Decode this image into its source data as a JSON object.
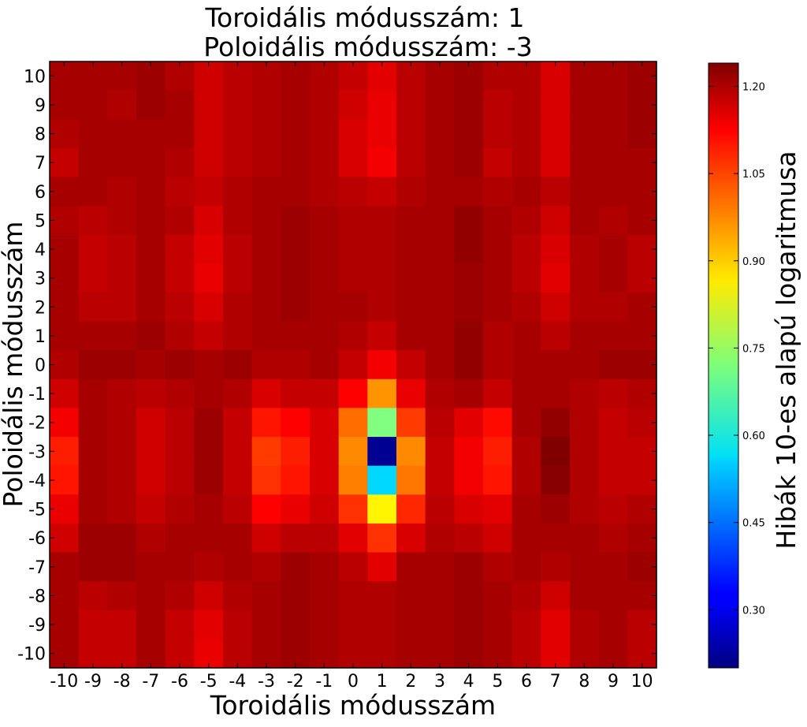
{
  "chart_data": {
    "type": "heatmap",
    "title": [
      "Toroidális módusszám: 1",
      "Poloidális módusszám: -3"
    ],
    "xlabel": "Toroidális módusszám",
    "ylabel": "Poloidális módusszám",
    "colorbar_label": "Hibák 10-es alapú logaritmusa",
    "x": [
      -10,
      -9,
      -8,
      -7,
      -6,
      -5,
      -4,
      -3,
      -2,
      -1,
      0,
      1,
      2,
      3,
      4,
      5,
      6,
      7,
      8,
      9,
      10
    ],
    "y": [
      10,
      9,
      8,
      7,
      6,
      5,
      4,
      3,
      2,
      1,
      0,
      -1,
      -2,
      -3,
      -4,
      -5,
      -6,
      -7,
      -8,
      -9,
      -10
    ],
    "x_tick_labels": [
      "-10",
      "-9",
      "-8",
      "-7",
      "-6",
      "-5",
      "-4",
      "-3",
      "-2",
      "-1",
      "0",
      "1",
      "2",
      "3",
      "4",
      "5",
      "6",
      "7",
      "8",
      "9",
      "10"
    ],
    "y_tick_labels": [
      "10",
      "9",
      "8",
      "7",
      "6",
      "5",
      "4",
      "3",
      "2",
      "1",
      "0",
      "-1",
      "-2",
      "-3",
      "-4",
      "-5",
      "-6",
      "-7",
      "-8",
      "-9",
      "-10"
    ],
    "colorbar_range": [
      0.2,
      1.24
    ],
    "colorbar_ticks": [
      0.3,
      0.45,
      0.6,
      0.75,
      0.9,
      1.05,
      1.2
    ],
    "colorbar_tick_labels": [
      "0.30",
      "0.45",
      "0.60",
      "0.75",
      "0.90",
      "1.05",
      "1.20"
    ],
    "colormap": "jet",
    "values": [
      [
        1.2,
        1.2,
        1.2,
        1.21,
        1.19,
        1.16,
        1.18,
        1.19,
        1.2,
        1.19,
        1.17,
        1.14,
        1.18,
        1.2,
        1.21,
        1.19,
        1.19,
        1.15,
        1.2,
        1.2,
        1.21
      ],
      [
        1.2,
        1.2,
        1.19,
        1.21,
        1.2,
        1.16,
        1.18,
        1.19,
        1.2,
        1.19,
        1.16,
        1.13,
        1.18,
        1.2,
        1.21,
        1.18,
        1.19,
        1.15,
        1.2,
        1.2,
        1.21
      ],
      [
        1.19,
        1.2,
        1.2,
        1.2,
        1.2,
        1.16,
        1.18,
        1.19,
        1.2,
        1.19,
        1.15,
        1.13,
        1.18,
        1.2,
        1.21,
        1.18,
        1.19,
        1.15,
        1.2,
        1.2,
        1.21
      ],
      [
        1.17,
        1.2,
        1.2,
        1.2,
        1.19,
        1.16,
        1.18,
        1.19,
        1.2,
        1.19,
        1.15,
        1.12,
        1.18,
        1.2,
        1.21,
        1.17,
        1.19,
        1.15,
        1.2,
        1.2,
        1.2
      ],
      [
        1.2,
        1.2,
        1.19,
        1.2,
        1.18,
        1.17,
        1.19,
        1.2,
        1.2,
        1.19,
        1.18,
        1.17,
        1.19,
        1.2,
        1.2,
        1.19,
        1.2,
        1.18,
        1.2,
        1.2,
        1.2
      ],
      [
        1.19,
        1.18,
        1.19,
        1.2,
        1.19,
        1.15,
        1.19,
        1.2,
        1.21,
        1.2,
        1.19,
        1.19,
        1.2,
        1.2,
        1.22,
        1.2,
        1.19,
        1.16,
        1.2,
        1.19,
        1.2
      ],
      [
        1.2,
        1.17,
        1.18,
        1.2,
        1.17,
        1.14,
        1.18,
        1.2,
        1.21,
        1.2,
        1.19,
        1.19,
        1.2,
        1.2,
        1.22,
        1.2,
        1.18,
        1.15,
        1.19,
        1.2,
        1.18
      ],
      [
        1.2,
        1.17,
        1.18,
        1.2,
        1.17,
        1.13,
        1.18,
        1.2,
        1.21,
        1.2,
        1.19,
        1.19,
        1.2,
        1.2,
        1.21,
        1.2,
        1.18,
        1.14,
        1.19,
        1.2,
        1.18
      ],
      [
        1.2,
        1.18,
        1.18,
        1.2,
        1.18,
        1.15,
        1.19,
        1.2,
        1.21,
        1.2,
        1.2,
        1.19,
        1.2,
        1.2,
        1.21,
        1.2,
        1.19,
        1.16,
        1.19,
        1.19,
        1.2
      ],
      [
        1.2,
        1.2,
        1.2,
        1.21,
        1.19,
        1.17,
        1.19,
        1.2,
        1.2,
        1.2,
        1.19,
        1.17,
        1.2,
        1.2,
        1.22,
        1.19,
        1.2,
        1.18,
        1.2,
        1.2,
        1.2
      ],
      [
        1.19,
        1.21,
        1.21,
        1.2,
        1.21,
        1.2,
        1.21,
        1.19,
        1.19,
        1.2,
        1.17,
        1.12,
        1.17,
        1.2,
        1.22,
        1.19,
        1.2,
        1.2,
        1.2,
        1.21,
        1.21
      ],
      [
        1.16,
        1.2,
        1.19,
        1.18,
        1.19,
        1.2,
        1.19,
        1.15,
        1.17,
        1.17,
        1.11,
        0.96,
        1.13,
        1.19,
        1.2,
        1.17,
        1.2,
        1.2,
        1.19,
        1.18,
        1.19
      ],
      [
        1.12,
        1.2,
        1.19,
        1.16,
        1.18,
        1.21,
        1.17,
        1.09,
        1.11,
        1.15,
        1.0,
        0.72,
        1.05,
        1.18,
        1.14,
        1.1,
        1.2,
        1.22,
        1.19,
        1.17,
        1.18
      ],
      [
        1.08,
        1.2,
        1.19,
        1.16,
        1.18,
        1.21,
        1.17,
        1.05,
        1.08,
        1.15,
        0.97,
        0.22,
        0.97,
        1.17,
        1.12,
        1.08,
        1.19,
        1.24,
        1.19,
        1.17,
        1.17
      ],
      [
        1.09,
        1.2,
        1.19,
        1.16,
        1.18,
        1.21,
        1.17,
        1.06,
        1.09,
        1.15,
        0.98,
        0.55,
        0.99,
        1.17,
        1.12,
        1.09,
        1.19,
        1.23,
        1.19,
        1.17,
        1.17
      ],
      [
        1.13,
        1.2,
        1.19,
        1.17,
        1.19,
        1.2,
        1.18,
        1.11,
        1.13,
        1.16,
        1.06,
        0.86,
        1.07,
        1.18,
        1.15,
        1.14,
        1.2,
        1.21,
        1.19,
        1.18,
        1.19
      ],
      [
        1.16,
        1.21,
        1.21,
        1.19,
        1.2,
        1.2,
        1.2,
        1.16,
        1.18,
        1.18,
        1.14,
        1.06,
        1.15,
        1.19,
        1.18,
        1.16,
        1.2,
        1.2,
        1.2,
        1.19,
        1.2
      ],
      [
        1.2,
        1.21,
        1.21,
        1.2,
        1.2,
        1.19,
        1.2,
        1.19,
        1.21,
        1.2,
        1.18,
        1.14,
        1.2,
        1.2,
        1.21,
        1.19,
        1.2,
        1.19,
        1.2,
        1.2,
        1.21
      ],
      [
        1.2,
        1.18,
        1.19,
        1.2,
        1.19,
        1.16,
        1.19,
        1.2,
        1.21,
        1.2,
        1.19,
        1.19,
        1.2,
        1.2,
        1.21,
        1.2,
        1.19,
        1.16,
        1.2,
        1.2,
        1.2
      ],
      [
        1.2,
        1.17,
        1.17,
        1.2,
        1.17,
        1.14,
        1.18,
        1.2,
        1.21,
        1.2,
        1.19,
        1.19,
        1.2,
        1.2,
        1.21,
        1.2,
        1.18,
        1.14,
        1.19,
        1.2,
        1.18
      ],
      [
        1.2,
        1.17,
        1.17,
        1.2,
        1.17,
        1.13,
        1.18,
        1.2,
        1.21,
        1.2,
        1.19,
        1.19,
        1.2,
        1.2,
        1.21,
        1.2,
        1.18,
        1.14,
        1.19,
        1.2,
        1.18
      ]
    ]
  }
}
